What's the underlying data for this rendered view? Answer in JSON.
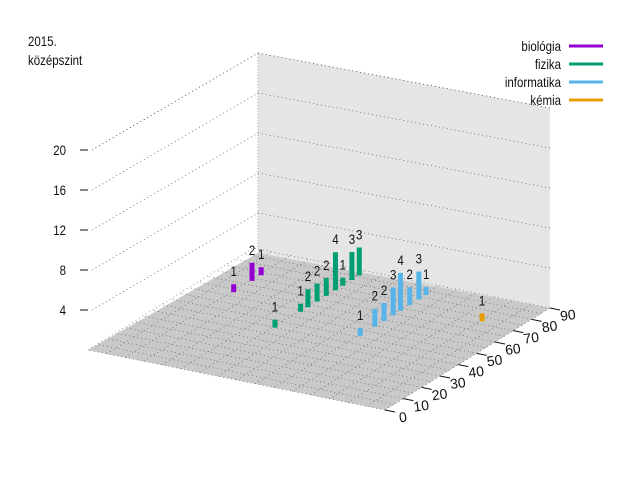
{
  "chart_data": {
    "type": "bar3d",
    "title": [
      "2015.",
      "középszint"
    ],
    "xlabel": "",
    "ylabel": "",
    "zlabel": "",
    "x_ticks": [
      0,
      10,
      20,
      30,
      40,
      50,
      60,
      70,
      80,
      90
    ],
    "xlim": [
      0,
      90
    ],
    "z_ticks": [
      4,
      8,
      12,
      16,
      20
    ],
    "zlim": [
      0,
      20
    ],
    "grid": true,
    "legend_position": "top-right",
    "series": [
      {
        "name": "biológia",
        "color": "#9400d3",
        "depth": 3,
        "x": [
          58,
          68,
          73
        ],
        "values": [
          1,
          2,
          1
        ],
        "labels": [
          "1",
          "2",
          "1"
        ]
      },
      {
        "name": "fizika",
        "color": "#009e73",
        "depth": 2,
        "x": [
          40,
          54,
          58,
          63,
          68,
          73,
          77,
          82,
          86
        ],
        "values": [
          1,
          1,
          2,
          2,
          2,
          4,
          1,
          3,
          3
        ],
        "labels": [
          "1",
          "1",
          "2",
          "2",
          "2",
          "4",
          "1",
          "3",
          "3"
        ]
      },
      {
        "name": "informatika",
        "color": "#56b4e9",
        "depth": 1,
        "x": [
          46,
          54,
          59,
          64,
          68,
          73,
          78,
          82
        ],
        "values": [
          1,
          2,
          2,
          3,
          4,
          2,
          3,
          1
        ],
        "labels": [
          "1",
          "2",
          "2",
          "3",
          "4",
          "2",
          "3",
          "1"
        ]
      },
      {
        "name": "kémia",
        "color": "#e69f00",
        "depth": 0,
        "x": [
          72
        ],
        "values": [
          1
        ],
        "labels": [
          "1"
        ]
      }
    ]
  }
}
